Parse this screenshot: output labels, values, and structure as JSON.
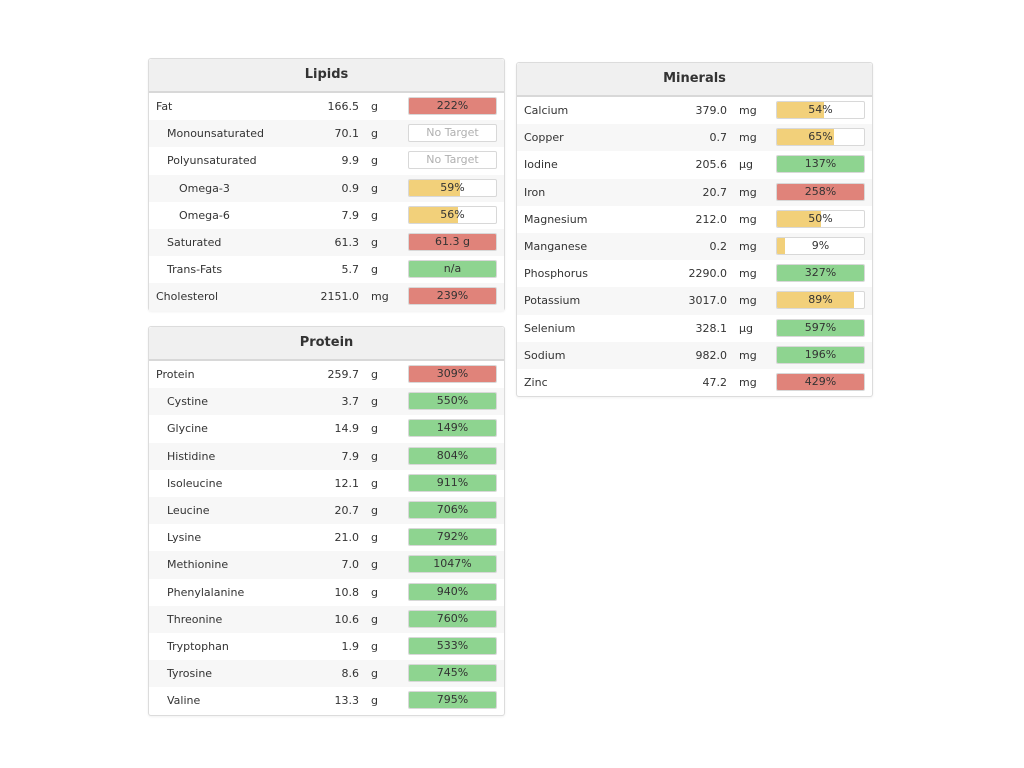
{
  "colors": {
    "red": "#e0837a",
    "yellow": "#f2d07a",
    "green": "#8ed490"
  },
  "lipids": {
    "title": "Lipids",
    "rows": [
      {
        "name": "Fat",
        "amount": "166.5",
        "unit": "g",
        "label": "222%",
        "pct": 100,
        "color": "red",
        "indent": 0
      },
      {
        "name": "Monounsaturated",
        "amount": "70.1",
        "unit": "g",
        "label": "No Target",
        "pct": 0,
        "color": "none",
        "indent": 1
      },
      {
        "name": "Polyunsaturated",
        "amount": "9.9",
        "unit": "g",
        "label": "No Target",
        "pct": 0,
        "color": "none",
        "indent": 1
      },
      {
        "name": "Omega-3",
        "amount": "0.9",
        "unit": "g",
        "label": "59%",
        "pct": 59,
        "color": "yellow",
        "indent": 2
      },
      {
        "name": "Omega-6",
        "amount": "7.9",
        "unit": "g",
        "label": "56%",
        "pct": 56,
        "color": "yellow",
        "indent": 2
      },
      {
        "name": "Saturated",
        "amount": "61.3",
        "unit": "g",
        "label": "61.3 g",
        "pct": 100,
        "color": "red",
        "indent": 1
      },
      {
        "name": "Trans-Fats",
        "amount": "5.7",
        "unit": "g",
        "label": "n/a",
        "pct": 100,
        "color": "green",
        "indent": 1
      },
      {
        "name": "Cholesterol",
        "amount": "2151.0",
        "unit": "mg",
        "label": "239%",
        "pct": 100,
        "color": "red",
        "indent": 0
      }
    ]
  },
  "protein": {
    "title": "Protein",
    "rows": [
      {
        "name": "Protein",
        "amount": "259.7",
        "unit": "g",
        "label": "309%",
        "pct": 100,
        "color": "red",
        "indent": 0
      },
      {
        "name": "Cystine",
        "amount": "3.7",
        "unit": "g",
        "label": "550%",
        "pct": 100,
        "color": "green",
        "indent": 1
      },
      {
        "name": "Glycine",
        "amount": "14.9",
        "unit": "g",
        "label": "149%",
        "pct": 100,
        "color": "green",
        "indent": 1
      },
      {
        "name": "Histidine",
        "amount": "7.9",
        "unit": "g",
        "label": "804%",
        "pct": 100,
        "color": "green",
        "indent": 1
      },
      {
        "name": "Isoleucine",
        "amount": "12.1",
        "unit": "g",
        "label": "911%",
        "pct": 100,
        "color": "green",
        "indent": 1
      },
      {
        "name": "Leucine",
        "amount": "20.7",
        "unit": "g",
        "label": "706%",
        "pct": 100,
        "color": "green",
        "indent": 1
      },
      {
        "name": "Lysine",
        "amount": "21.0",
        "unit": "g",
        "label": "792%",
        "pct": 100,
        "color": "green",
        "indent": 1
      },
      {
        "name": "Methionine",
        "amount": "7.0",
        "unit": "g",
        "label": "1047%",
        "pct": 100,
        "color": "green",
        "indent": 1
      },
      {
        "name": "Phenylalanine",
        "amount": "10.8",
        "unit": "g",
        "label": "940%",
        "pct": 100,
        "color": "green",
        "indent": 1
      },
      {
        "name": "Threonine",
        "amount": "10.6",
        "unit": "g",
        "label": "760%",
        "pct": 100,
        "color": "green",
        "indent": 1
      },
      {
        "name": "Tryptophan",
        "amount": "1.9",
        "unit": "g",
        "label": "533%",
        "pct": 100,
        "color": "green",
        "indent": 1
      },
      {
        "name": "Tyrosine",
        "amount": "8.6",
        "unit": "g",
        "label": "745%",
        "pct": 100,
        "color": "green",
        "indent": 1
      },
      {
        "name": "Valine",
        "amount": "13.3",
        "unit": "g",
        "label": "795%",
        "pct": 100,
        "color": "green",
        "indent": 1
      }
    ]
  },
  "minerals": {
    "title": "Minerals",
    "rows": [
      {
        "name": "Calcium",
        "amount": "379.0",
        "unit": "mg",
        "label": "54%",
        "pct": 54,
        "color": "yellow",
        "indent": 0
      },
      {
        "name": "Copper",
        "amount": "0.7",
        "unit": "mg",
        "label": "65%",
        "pct": 65,
        "color": "yellow",
        "indent": 0
      },
      {
        "name": "Iodine",
        "amount": "205.6",
        "unit": "µg",
        "label": "137%",
        "pct": 100,
        "color": "green",
        "indent": 0
      },
      {
        "name": "Iron",
        "amount": "20.7",
        "unit": "mg",
        "label": "258%",
        "pct": 100,
        "color": "red",
        "indent": 0
      },
      {
        "name": "Magnesium",
        "amount": "212.0",
        "unit": "mg",
        "label": "50%",
        "pct": 50,
        "color": "yellow",
        "indent": 0
      },
      {
        "name": "Manganese",
        "amount": "0.2",
        "unit": "mg",
        "label": "9%",
        "pct": 9,
        "color": "yellow",
        "indent": 0
      },
      {
        "name": "Phosphorus",
        "amount": "2290.0",
        "unit": "mg",
        "label": "327%",
        "pct": 100,
        "color": "green",
        "indent": 0
      },
      {
        "name": "Potassium",
        "amount": "3017.0",
        "unit": "mg",
        "label": "89%",
        "pct": 89,
        "color": "yellow",
        "indent": 0
      },
      {
        "name": "Selenium",
        "amount": "328.1",
        "unit": "µg",
        "label": "597%",
        "pct": 100,
        "color": "green",
        "indent": 0
      },
      {
        "name": "Sodium",
        "amount": "982.0",
        "unit": "mg",
        "label": "196%",
        "pct": 100,
        "color": "green",
        "indent": 0
      },
      {
        "name": "Zinc",
        "amount": "47.2",
        "unit": "mg",
        "label": "429%",
        "pct": 100,
        "color": "red",
        "indent": 0
      }
    ]
  }
}
